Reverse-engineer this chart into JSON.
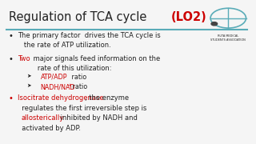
{
  "title": "Regulation of TCA cycle",
  "title_color": "#222222",
  "lo2_text": "(LO2)",
  "lo2_color": "#cc0000",
  "bg_color": "#f5f5f5",
  "line_color": "#5aacb8",
  "bullet2_two": "Two",
  "bullet2_intro": " major signals feed information on the\n   rate of this utilization:",
  "sub1_label": "ATP/ADP",
  "sub2_label": "NADH/NAD",
  "sub2_plus": "+",
  "sub_suffix": " ratio",
  "red": "#cc0000",
  "dark": "#222222",
  "teal": "#5aacb8"
}
